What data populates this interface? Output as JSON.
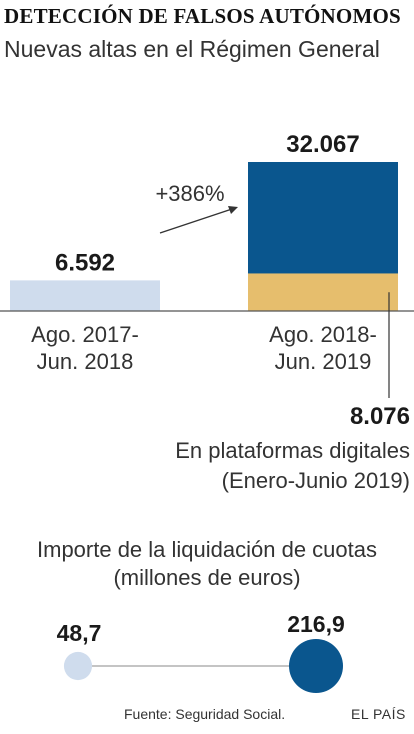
{
  "title": "DETECCIÓN DE FALSOS AUTÓNOMOS",
  "subtitle": "Nuevas altas en el Régimen General",
  "colors": {
    "bar_2017": "#cfdced",
    "bar_2019_main": "#0a568e",
    "bar_2019_platforms": "#e6be6d",
    "dot_small": "#cfdced",
    "dot_large": "#0a568e",
    "line": "#888888"
  },
  "chart_data": [
    {
      "type": "bar",
      "categories": [
        "Ago. 2017-\nJun. 2018",
        "Ago. 2018-\nJun. 2019"
      ],
      "category_lines": [
        [
          "Ago. 2017-",
          "Jun. 2018"
        ],
        [
          "Ago. 2018-",
          "Jun. 2019"
        ]
      ],
      "values": [
        6592,
        32067
      ],
      "value_labels": [
        "6.592",
        "32.067"
      ],
      "stacked_segment": {
        "category_index": 1,
        "value": 8076,
        "value_label": "8.076",
        "label_lines": [
          "En plataformas digitales",
          "(Enero-Junio 2019)"
        ]
      },
      "annotation": "+386%"
    },
    {
      "type": "scatter",
      "title_lines": [
        "Importe de la liquidación de cuotas",
        "(millones de euros)"
      ],
      "values": [
        48.7,
        216.9
      ],
      "value_labels": [
        "48,7",
        "216,9"
      ]
    }
  ],
  "source": "Fuente: Seguridad Social.",
  "brand": "EL PAÍS"
}
